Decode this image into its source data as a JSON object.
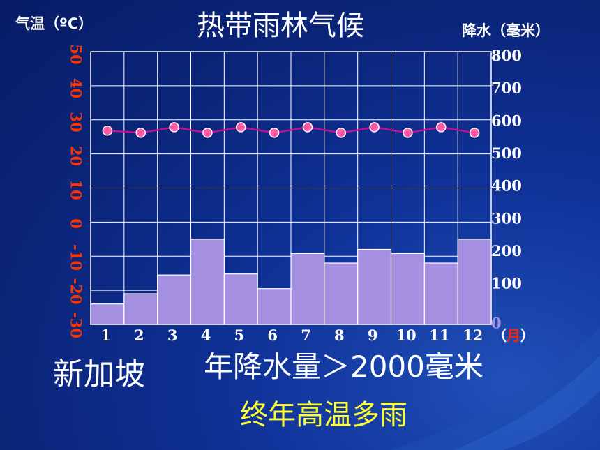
{
  "title": "热带雨林气候",
  "left_axis_label": "气温（ºC）",
  "right_axis_label": "降水（毫米）",
  "city": "新加坡",
  "precip_note": "年降水量＞2000毫米",
  "summary": "终年高温多雨",
  "month_unit_open": "（",
  "month_unit": "月",
  "month_unit_close": "）",
  "colors": {
    "background": "#0a2478",
    "bars": "#a58fe0",
    "temperature_line": "#c0108a",
    "temperature_points": "#ff5aa8",
    "temperature_ticks": "#ff3300",
    "title": "#ffffff",
    "summary": "#ffff33"
  },
  "chart_data": {
    "type": "bar",
    "title": "热带雨林气候",
    "categories": [
      "1",
      "2",
      "3",
      "4",
      "5",
      "6",
      "7",
      "8",
      "9",
      "10",
      "11",
      "12"
    ],
    "temperature_ticks": [
      "50",
      "40",
      "30",
      "20",
      "10",
      "0",
      "-10",
      "-20",
      "-30"
    ],
    "precip_ticks": [
      "800",
      "700",
      "600",
      "500",
      "400",
      "300",
      "200",
      "100",
      "0"
    ],
    "temperature_ylim": [
      -30,
      50
    ],
    "precip_ylim": [
      0,
      800
    ],
    "grid": true,
    "series": [
      {
        "kind": "bar",
        "axis": "right",
        "values": [
          60,
          90,
          145,
          250,
          148,
          105,
          208,
          180,
          220,
          208,
          180,
          250
        ]
      },
      {
        "kind": "line",
        "axis": "left",
        "values": [
          26,
          27,
          27,
          27,
          27,
          27,
          27,
          27,
          27,
          27,
          27,
          27
        ]
      }
    ]
  }
}
